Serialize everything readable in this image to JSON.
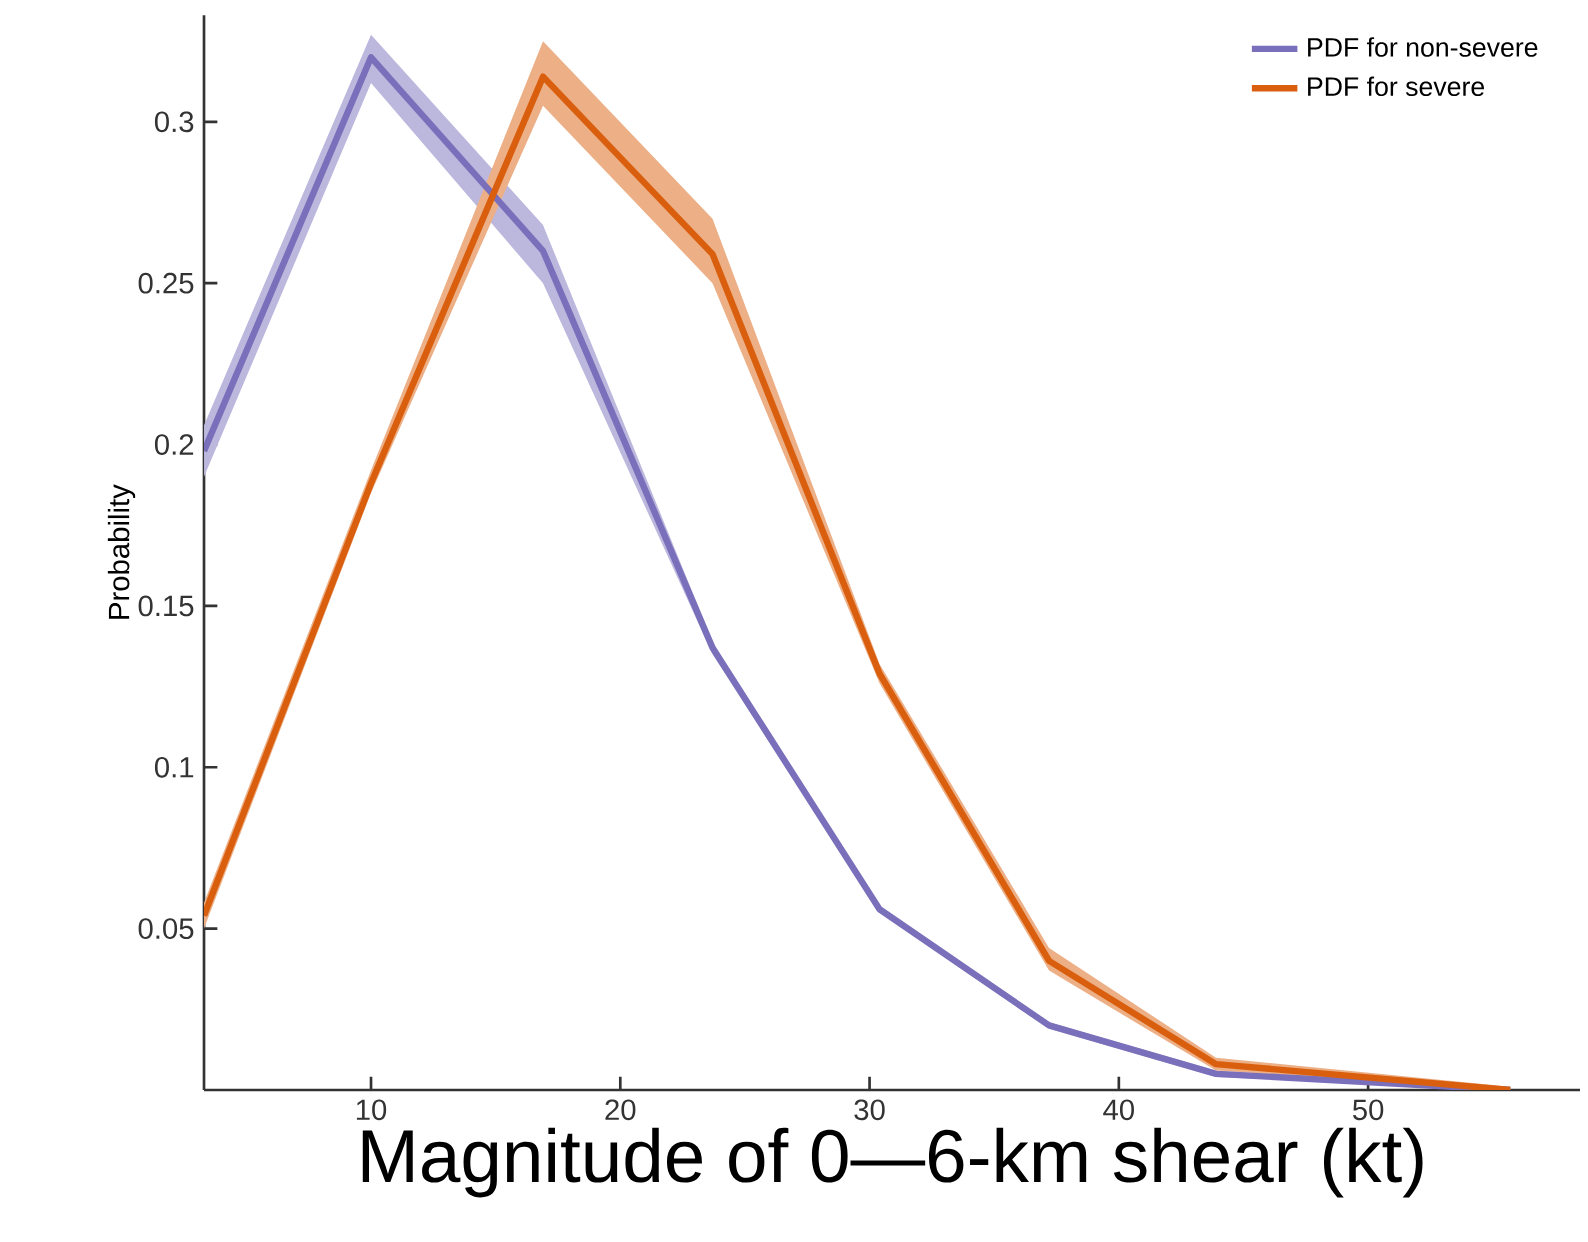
{
  "chart_data": {
    "type": "line",
    "xlabel": "Magnitude of 0—6-km shear (kt)",
    "ylabel": "Probability",
    "xlim": [
      3.3,
      58.5
    ],
    "ylim": [
      0,
      0.333
    ],
    "xticks": [
      10,
      20,
      30,
      40,
      50
    ],
    "yticks": [
      0.05,
      0.1,
      0.15,
      0.2,
      0.25,
      0.3
    ],
    "legend": "top right",
    "grid": false,
    "line_style": "solid",
    "marker": "none",
    "series": [
      {
        "name": "PDF for non-severe",
        "color": "#7a6fba",
        "x": [
          3.3,
          10,
          16.9,
          23.7,
          30.4,
          37.2,
          43.9,
          55.7
        ],
        "values": [
          0.198,
          0.32,
          0.26,
          0.137,
          0.056,
          0.02,
          0.005,
          0
        ],
        "lower": [
          0.19,
          0.312,
          0.25,
          0.135,
          0.055,
          0.019,
          0.004,
          0
        ],
        "upper": [
          0.206,
          0.327,
          0.268,
          0.139,
          0.057,
          0.021,
          0.006,
          0.001
        ]
      },
      {
        "name": "PDF for severe",
        "color": "#d95f0e",
        "x": [
          3.3,
          10,
          16.9,
          23.7,
          30.4,
          37.2,
          43.9,
          55.7
        ],
        "values": [
          0.054,
          0.188,
          0.314,
          0.259,
          0.129,
          0.04,
          0.008,
          0
        ],
        "lower": [
          0.05,
          0.185,
          0.305,
          0.25,
          0.126,
          0.037,
          0.006,
          0
        ],
        "upper": [
          0.058,
          0.192,
          0.325,
          0.27,
          0.132,
          0.044,
          0.01,
          0.001
        ]
      }
    ]
  }
}
